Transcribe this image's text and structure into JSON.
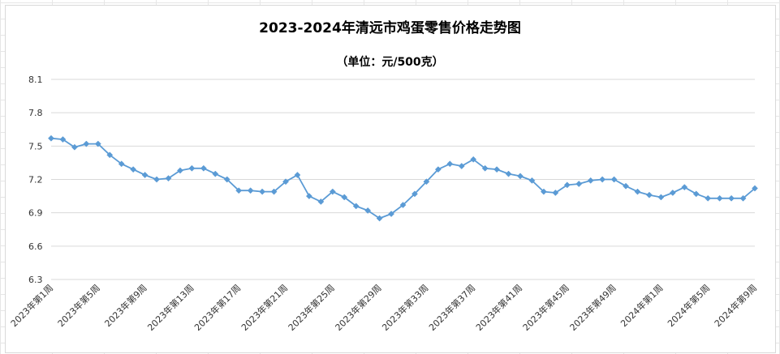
{
  "chart_data": {
    "type": "line",
    "title": "2023-2024年清远市鸡蛋零售价格走势图",
    "subtitle": "（单位：元/500克）",
    "xlabel": "",
    "ylabel": "",
    "ylim": [
      6.3,
      8.1
    ],
    "yticks": [
      "8.1",
      "7.8",
      "7.5",
      "7.2",
      "6.9",
      "6.6",
      "6.3"
    ],
    "grid": true,
    "legend": "none",
    "color": "#5b9bd5",
    "x": [
      "2023年第1周",
      "2023年第2周",
      "2023年第3周",
      "2023年第4周",
      "2023年第5周",
      "2023年第6周",
      "2023年第7周",
      "2023年第8周",
      "2023年第9周",
      "2023年第10周",
      "2023年第11周",
      "2023年第12周",
      "2023年第13周",
      "2023年第14周",
      "2023年第15周",
      "2023年第16周",
      "2023年第17周",
      "2023年第18周",
      "2023年第19周",
      "2023年第20周",
      "2023年第21周",
      "2023年第22周",
      "2023年第23周",
      "2023年第24周",
      "2023年第25周",
      "2023年第26周",
      "2023年第27周",
      "2023年第28周",
      "2023年第29周",
      "2023年第30周",
      "2023年第31周",
      "2023年第32周",
      "2023年第33周",
      "2023年第34周",
      "2023年第35周",
      "2023年第36周",
      "2023年第37周",
      "2023年第38周",
      "2023年第39周",
      "2023年第40周",
      "2023年第41周",
      "2023年第42周",
      "2023年第43周",
      "2023年第44周",
      "2023年第45周",
      "2023年第46周",
      "2023年第47周",
      "2023年第48周",
      "2023年第49周",
      "2023年第50周",
      "2023年第51周",
      "2023年第52周",
      "2024年第1周",
      "2024年第2周",
      "2024年第3周",
      "2024年第4周",
      "2024年第5周",
      "2024年第6周",
      "2024年第7周",
      "2024年第8周",
      "2024年第9周"
    ],
    "xtick_labels": [
      "2023年第1周",
      "2023年第5周",
      "2023年第9周",
      "2023年第13周",
      "2023年第17周",
      "2023年第21周",
      "2023年第25周",
      "2023年第29周",
      "2023年第33周",
      "2023年第37周",
      "2023年第41周",
      "2023年第45周",
      "2023年第49周",
      "2024年第1周",
      "2024年第5周",
      "2024年第9周"
    ],
    "values": [
      7.57,
      7.56,
      7.49,
      7.52,
      7.52,
      7.42,
      7.34,
      7.29,
      7.24,
      7.2,
      7.21,
      7.28,
      7.3,
      7.3,
      7.25,
      7.2,
      7.1,
      7.1,
      7.09,
      7.09,
      7.18,
      7.24,
      7.05,
      7.0,
      7.09,
      7.04,
      6.96,
      6.92,
      6.85,
      6.89,
      6.97,
      7.07,
      7.18,
      7.29,
      7.34,
      7.32,
      7.38,
      7.3,
      7.29,
      7.25,
      7.23,
      7.19,
      7.09,
      7.08,
      7.15,
      7.16,
      7.19,
      7.2,
      7.2,
      7.14,
      7.09,
      7.06,
      7.04,
      7.08,
      7.13,
      7.07,
      7.03,
      7.03,
      7.03,
      7.03,
      7.12
    ]
  }
}
